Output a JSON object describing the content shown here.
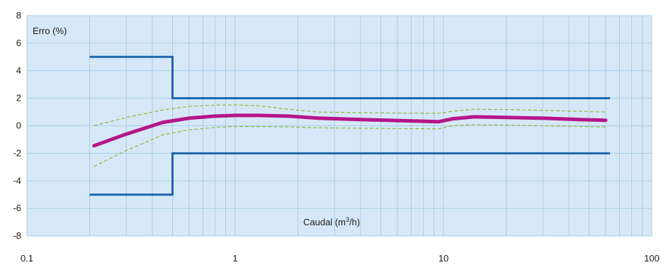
{
  "chart_data": {
    "type": "line",
    "title": "",
    "ylabel": "Erro (%)",
    "xlabel": {
      "main": "Caudal (m",
      "sup": "3",
      "end": "/h)"
    },
    "x_scale": "log",
    "xlim": [
      0.1,
      100
    ],
    "ylim": [
      -8,
      8
    ],
    "x_ticks": [
      "0.1",
      "1",
      "10",
      "100"
    ],
    "x_tick_values": [
      0.1,
      1,
      10,
      100
    ],
    "y_ticks": [
      "8",
      "6",
      "4",
      "2",
      "0",
      "-2",
      "-4",
      "-6",
      "-8"
    ],
    "y_tick_values": [
      8,
      6,
      4,
      2,
      0,
      -2,
      -4,
      -6,
      -8
    ],
    "grid": true,
    "colors": {
      "plot_background": "#d6e8f7",
      "grid": "#a9cde9",
      "limits": "#1f66ad",
      "error_curve": "#b5168a",
      "tolerance_band": "#8dbb2f"
    },
    "series": [
      {
        "role": "upper-limit",
        "x": [
          0.2,
          0.5,
          0.5,
          63
        ],
        "y": [
          5,
          5,
          2,
          2
        ]
      },
      {
        "role": "lower-limit",
        "x": [
          0.2,
          0.5,
          0.5,
          63
        ],
        "y": [
          -5,
          -5,
          -2,
          -2
        ]
      },
      {
        "role": "error-curve",
        "x": [
          0.21,
          0.3,
          0.45,
          0.6,
          0.8,
          1.0,
          1.3,
          1.8,
          2.5,
          4,
          6,
          9.5,
          11,
          14,
          20,
          30,
          45,
          60
        ],
        "y": [
          -1.45,
          -0.6,
          0.25,
          0.55,
          0.7,
          0.75,
          0.75,
          0.7,
          0.55,
          0.45,
          0.38,
          0.3,
          0.5,
          0.65,
          0.6,
          0.55,
          0.45,
          0.4
        ]
      },
      {
        "role": "band-upper",
        "x": [
          0.21,
          0.3,
          0.45,
          0.6,
          0.8,
          1.0,
          1.3,
          1.8,
          2.5,
          4,
          6,
          9.5,
          11,
          14,
          20,
          30,
          45,
          60
        ],
        "y": [
          0.0,
          0.6,
          1.15,
          1.4,
          1.5,
          1.52,
          1.45,
          1.2,
          1.0,
          0.95,
          0.92,
          0.9,
          1.05,
          1.2,
          1.18,
          1.12,
          1.05,
          1.0
        ]
      },
      {
        "role": "band-lower",
        "x": [
          0.21,
          0.3,
          0.45,
          0.6,
          0.8,
          1.0,
          1.3,
          1.8,
          2.5,
          4,
          6,
          9.5,
          11,
          14,
          20,
          30,
          45,
          60
        ],
        "y": [
          -2.95,
          -1.8,
          -0.65,
          -0.3,
          -0.12,
          -0.05,
          -0.05,
          -0.08,
          -0.15,
          -0.18,
          -0.2,
          -0.22,
          0.0,
          0.08,
          0.05,
          0.0,
          -0.05,
          -0.08
        ]
      }
    ]
  }
}
